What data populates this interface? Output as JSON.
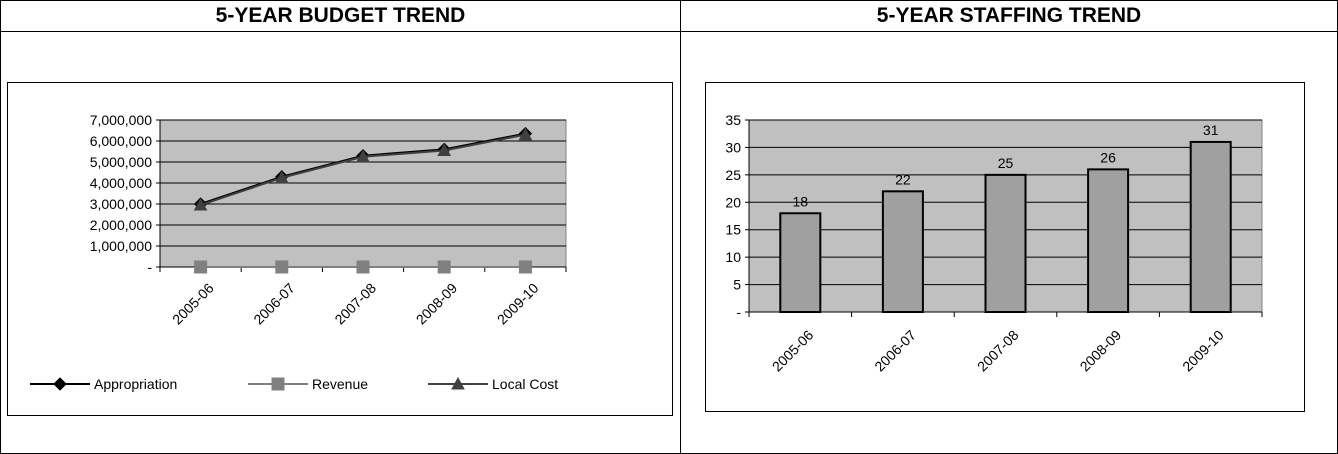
{
  "panels": {
    "budget_title": "5-YEAR BUDGET TREND",
    "staffing_title": "5-YEAR STAFFING TREND"
  },
  "chart_data": [
    {
      "type": "line",
      "x": [
        "2005-06",
        "2006-07",
        "2007-08",
        "2008-09",
        "2009-10"
      ],
      "ylim": [
        0,
        7000000
      ],
      "yticks": [
        0,
        1000000,
        2000000,
        3000000,
        4000000,
        5000000,
        6000000,
        7000000
      ],
      "ytick_labels": [
        "-",
        "1,000,000",
        "2,000,000",
        "3,000,000",
        "4,000,000",
        "5,000,000",
        "6,000,000",
        "7,000,000"
      ],
      "grid": true,
      "legend_position": "bottom",
      "series": [
        {
          "name": "Appropriation",
          "marker": "diamond",
          "color": "#000000",
          "values": [
            3000000,
            4300000,
            5300000,
            5600000,
            6350000
          ]
        },
        {
          "name": "Revenue",
          "marker": "square",
          "color": "#808080",
          "values": [
            0,
            0,
            0,
            0,
            0
          ]
        },
        {
          "name": "Local Cost",
          "marker": "triangle",
          "color": "#404040",
          "values": [
            2950000,
            4250000,
            5250000,
            5550000,
            6300000
          ]
        }
      ],
      "plot_background": "#c0c0c0"
    },
    {
      "type": "bar",
      "categories": [
        "2005-06",
        "2006-07",
        "2007-08",
        "2008-09",
        "2009-10"
      ],
      "values": [
        18,
        22,
        25,
        26,
        31
      ],
      "ylim": [
        0,
        35
      ],
      "yticks": [
        0,
        5,
        10,
        15,
        20,
        25,
        30,
        35
      ],
      "ytick_labels": [
        "-",
        "5",
        "10",
        "15",
        "20",
        "25",
        "30",
        "35"
      ],
      "grid": true,
      "data_labels": true,
      "bar_color": "#a0a0a0",
      "plot_background": "#c0c0c0"
    }
  ]
}
